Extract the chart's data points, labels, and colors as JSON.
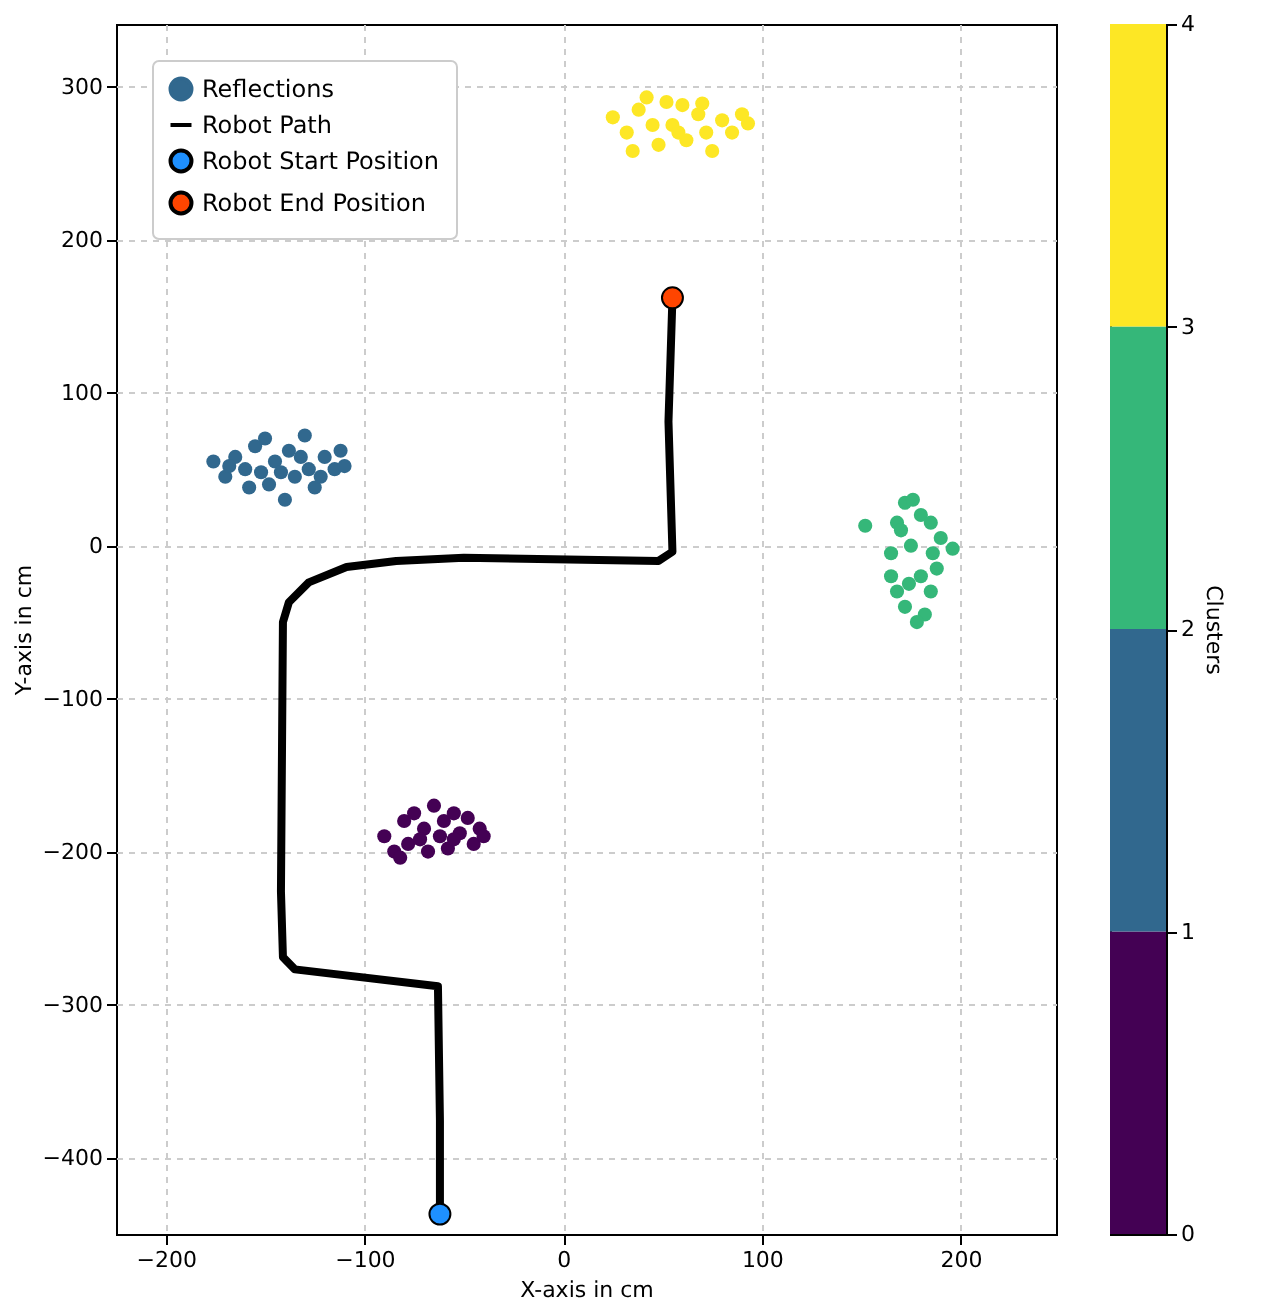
{
  "chart_data": {
    "type": "scatter",
    "xlabel": "X-axis in cm",
    "ylabel": "Y-axis in cm",
    "clabel": "Clusters",
    "xlim": [
      -225,
      248
    ],
    "ylim": [
      -450,
      341
    ],
    "xticks": [
      -200,
      -100,
      0,
      100,
      200
    ],
    "yticks": [
      -400,
      -300,
      -200,
      -100,
      0,
      100,
      200,
      300
    ],
    "clim": [
      0,
      4
    ],
    "cticks": [
      0,
      1,
      2,
      3,
      4
    ],
    "grid": true,
    "legend": "top left",
    "marker": "circle",
    "series": [
      {
        "name": "Reflections",
        "type": "scatter",
        "colors": [
          "#31688e",
          "#31688e",
          "#31688e",
          "#31688e",
          "#31688e",
          "#31688e",
          "#31688e",
          "#31688e",
          "#31688e",
          "#31688e",
          "#31688e",
          "#31688e",
          "#31688e",
          "#31688e",
          "#31688e",
          "#31688e",
          "#31688e",
          "#31688e",
          "#31688e",
          "#31688e",
          "#31688e",
          "#31688e",
          "#31688e",
          "#31688e",
          "#440154",
          "#440154",
          "#440154",
          "#440154",
          "#440154",
          "#440154",
          "#440154",
          "#440154",
          "#440154",
          "#440154",
          "#440154",
          "#440154",
          "#440154",
          "#440154",
          "#440154",
          "#440154",
          "#440154",
          "#440154",
          "#440154",
          "#440154",
          "#35b779",
          "#35b779",
          "#35b779",
          "#35b779",
          "#35b779",
          "#35b779",
          "#35b779",
          "#35b779",
          "#35b779",
          "#35b779",
          "#35b779",
          "#35b779",
          "#35b779",
          "#35b779",
          "#35b779",
          "#35b779",
          "#35b779",
          "#35b779",
          "#35b779",
          "#35b779",
          "#35b779",
          "#fde725",
          "#fde725",
          "#fde725",
          "#fde725",
          "#fde725",
          "#fde725",
          "#fde725",
          "#fde725",
          "#fde725",
          "#fde725",
          "#fde725",
          "#fde725",
          "#fde725",
          "#fde725",
          "#fde725",
          "#fde725",
          "#fde725",
          "#fde725",
          "#fde725",
          "#fde725"
        ],
        "x": [
          -176,
          -170,
          -165,
          -160,
          -155,
          -150,
          -148,
          -145,
          -140,
          -138,
          -135,
          -130,
          -128,
          -125,
          -120,
          -115,
          -112,
          -110,
          -158,
          -142,
          -132,
          -168,
          -152,
          -122,
          -90,
          -85,
          -80,
          -78,
          -75,
          -70,
          -68,
          -65,
          -62,
          -60,
          -58,
          -55,
          -52,
          -48,
          -45,
          -42,
          -40,
          -72,
          -55,
          -82,
          152,
          165,
          168,
          172,
          176,
          180,
          185,
          190,
          196,
          188,
          185,
          182,
          178,
          172,
          168,
          165,
          175,
          180,
          170,
          186,
          174,
          25,
          32,
          38,
          42,
          48,
          52,
          55,
          60,
          62,
          68,
          72,
          75,
          80,
          85,
          90,
          93,
          45,
          58,
          70,
          35
        ],
        "values": [
          55,
          45,
          58,
          50,
          65,
          70,
          40,
          55,
          30,
          62,
          45,
          72,
          50,
          38,
          58,
          50,
          62,
          52,
          38,
          48,
          58,
          52,
          48,
          45,
          -190,
          -200,
          -180,
          -195,
          -175,
          -185,
          -200,
          -170,
          -190,
          -180,
          -198,
          -175,
          -188,
          -178,
          -195,
          -185,
          -190,
          -192,
          -192,
          -204,
          13,
          -5,
          15,
          28,
          30,
          20,
          15,
          5,
          -2,
          -15,
          -30,
          -45,
          -50,
          -40,
          -30,
          -20,
          0,
          -20,
          10,
          -5,
          -25,
          280,
          270,
          285,
          293,
          262,
          290,
          275,
          288,
          265,
          282,
          270,
          258,
          278,
          270,
          282,
          276,
          275,
          270,
          289,
          258
        ]
      },
      {
        "name": "Robot Path",
        "type": "line",
        "marker": "none",
        "color": "#000000",
        "x": [
          -62,
          -62,
          -63,
          -135,
          -141,
          -142,
          -141,
          -138,
          -128,
          -109,
          -84,
          -50,
          48,
          55,
          53,
          55
        ],
        "values": [
          -437,
          -376,
          -288,
          -277,
          -269,
          -226,
          -50,
          -37,
          -24,
          -14,
          -10,
          -8,
          -10,
          -4,
          81,
          162
        ]
      },
      {
        "name": "Robot Start Position",
        "type": "scatter",
        "color": "#1e90ff",
        "x": [
          -62
        ],
        "values": [
          -437
        ]
      },
      {
        "name": "Robot End Position",
        "type": "scatter",
        "color": "#ff4500",
        "x": [
          55
        ],
        "values": [
          162
        ]
      }
    ]
  }
}
